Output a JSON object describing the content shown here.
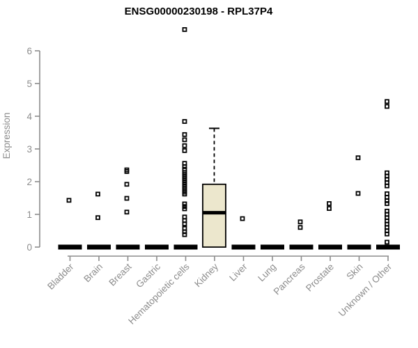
{
  "title": "ENSG00000230198 - RPL37P4",
  "chart_data": {
    "type": "boxplot",
    "title": "ENSG00000230198 - RPL37P4",
    "xlabel": "",
    "ylabel": "Expression",
    "ylim": [
      0,
      6
    ],
    "yticks": [
      0,
      1,
      2,
      3,
      4,
      5,
      6
    ],
    "grid": false,
    "legend": false,
    "colors": {
      "axis": "#8c8c8c",
      "tick_label": "#8c8c8c",
      "axis_title": "#8c8c8c",
      "chart_title": "#000000",
      "point": "#000000",
      "box_fill": "#ece7cd",
      "box_border": "#000000",
      "median": "#000000",
      "zero_bar": "#000000",
      "background": "#ffffff"
    },
    "categories": [
      "Bladder",
      "Brain",
      "Breast",
      "Gastric",
      "Hematopoietic cells",
      "Kidney",
      "Liver",
      "Lung",
      "Pancreas",
      "Prostate",
      "Skin",
      "Unknown / Other"
    ],
    "series": [
      {
        "category": "Bladder",
        "zero_bar": true,
        "box": null,
        "points": [
          1.43
        ]
      },
      {
        "category": "Brain",
        "zero_bar": true,
        "box": null,
        "points": [
          1.62,
          0.9
        ]
      },
      {
        "category": "Breast",
        "zero_bar": true,
        "box": null,
        "points": [
          2.36,
          2.31,
          1.92,
          1.49,
          1.07
        ]
      },
      {
        "category": "Gastric",
        "zero_bar": true,
        "box": null,
        "points": []
      },
      {
        "category": "Hematopoietic cells",
        "zero_bar": true,
        "box": null,
        "points": [
          6.65,
          3.84,
          3.44,
          3.28,
          3.1,
          2.95,
          2.56,
          2.46,
          2.38,
          2.28,
          2.22,
          2.16,
          2.1,
          2.04,
          1.98,
          1.92,
          1.86,
          1.8,
          1.74,
          1.68,
          1.62,
          1.32,
          1.24,
          1.17,
          0.92,
          0.81,
          0.71,
          0.57,
          0.47,
          0.38
        ]
      },
      {
        "category": "Kidney",
        "zero_bar": false,
        "box": {
          "whisker_low": 0,
          "q1": 0,
          "median": 1.05,
          "q3": 1.92,
          "whisker_high": 3.63
        },
        "points": []
      },
      {
        "category": "Liver",
        "zero_bar": true,
        "box": null,
        "points": [
          0.87
        ]
      },
      {
        "category": "Lung",
        "zero_bar": true,
        "box": null,
        "points": []
      },
      {
        "category": "Pancreas",
        "zero_bar": true,
        "box": null,
        "points": [
          0.77,
          0.6
        ]
      },
      {
        "category": "Prostate",
        "zero_bar": true,
        "box": null,
        "points": [
          1.33,
          1.18
        ]
      },
      {
        "category": "Skin",
        "zero_bar": true,
        "box": null,
        "points": [
          2.73,
          1.64
        ]
      },
      {
        "category": "Unknown / Other",
        "zero_bar": true,
        "box": null,
        "points": [
          4.45,
          4.3,
          2.27,
          2.17,
          2.07,
          1.97,
          1.87,
          1.63,
          1.52,
          1.42,
          1.33,
          1.1,
          1.0,
          0.9,
          0.8,
          0.7,
          0.6,
          0.5,
          0.4,
          0.15
        ]
      }
    ]
  }
}
